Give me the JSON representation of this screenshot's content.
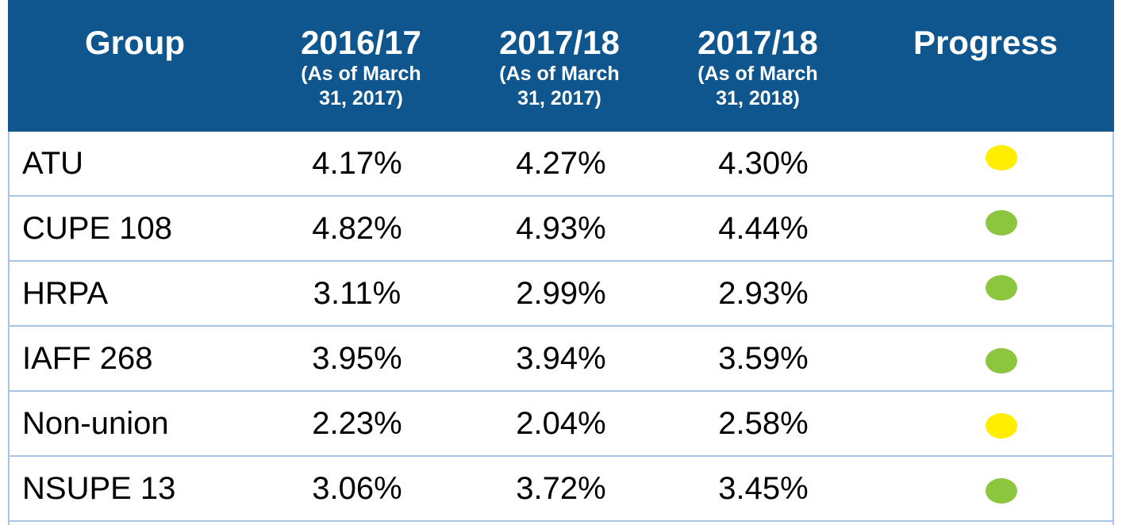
{
  "table": {
    "columns": [
      {
        "title": "Group"
      },
      {
        "title": "2016/17",
        "subtitle_lines": [
          "(As of March",
          "31, 2017)"
        ]
      },
      {
        "title": "2017/18",
        "subtitle_lines": [
          "(As of March",
          "31, 2017)"
        ]
      },
      {
        "title": "2017/18",
        "subtitle_lines": [
          "(As of March",
          "31, 2018)"
        ]
      },
      {
        "title": "Progress"
      }
    ],
    "rows": [
      {
        "cells": [
          "ATU",
          "4.17%",
          "4.27%",
          "4.30%"
        ],
        "progress_color": "#ffee00"
      },
      {
        "cells": [
          "CUPE 108",
          "4.82%",
          "4.93%",
          "4.44%"
        ],
        "progress_color": "#8cc63f"
      },
      {
        "cells": [
          "HRPA",
          "3.11%",
          "2.99%",
          "2.93%"
        ],
        "progress_color": "#8cc63f"
      },
      {
        "cells": [
          "IAFF 268",
          "3.95%",
          "3.94%",
          "3.59%"
        ],
        "progress_color": "#8cc63f"
      },
      {
        "cells": [
          "Non-union",
          "2.23%",
          "2.04%",
          "2.58%"
        ],
        "progress_color": "#ffee00"
      },
      {
        "cells": [
          "NSUPE 13",
          "3.06%",
          "3.72%",
          "3.45%"
        ],
        "progress_color": "#8cc63f"
      }
    ]
  }
}
